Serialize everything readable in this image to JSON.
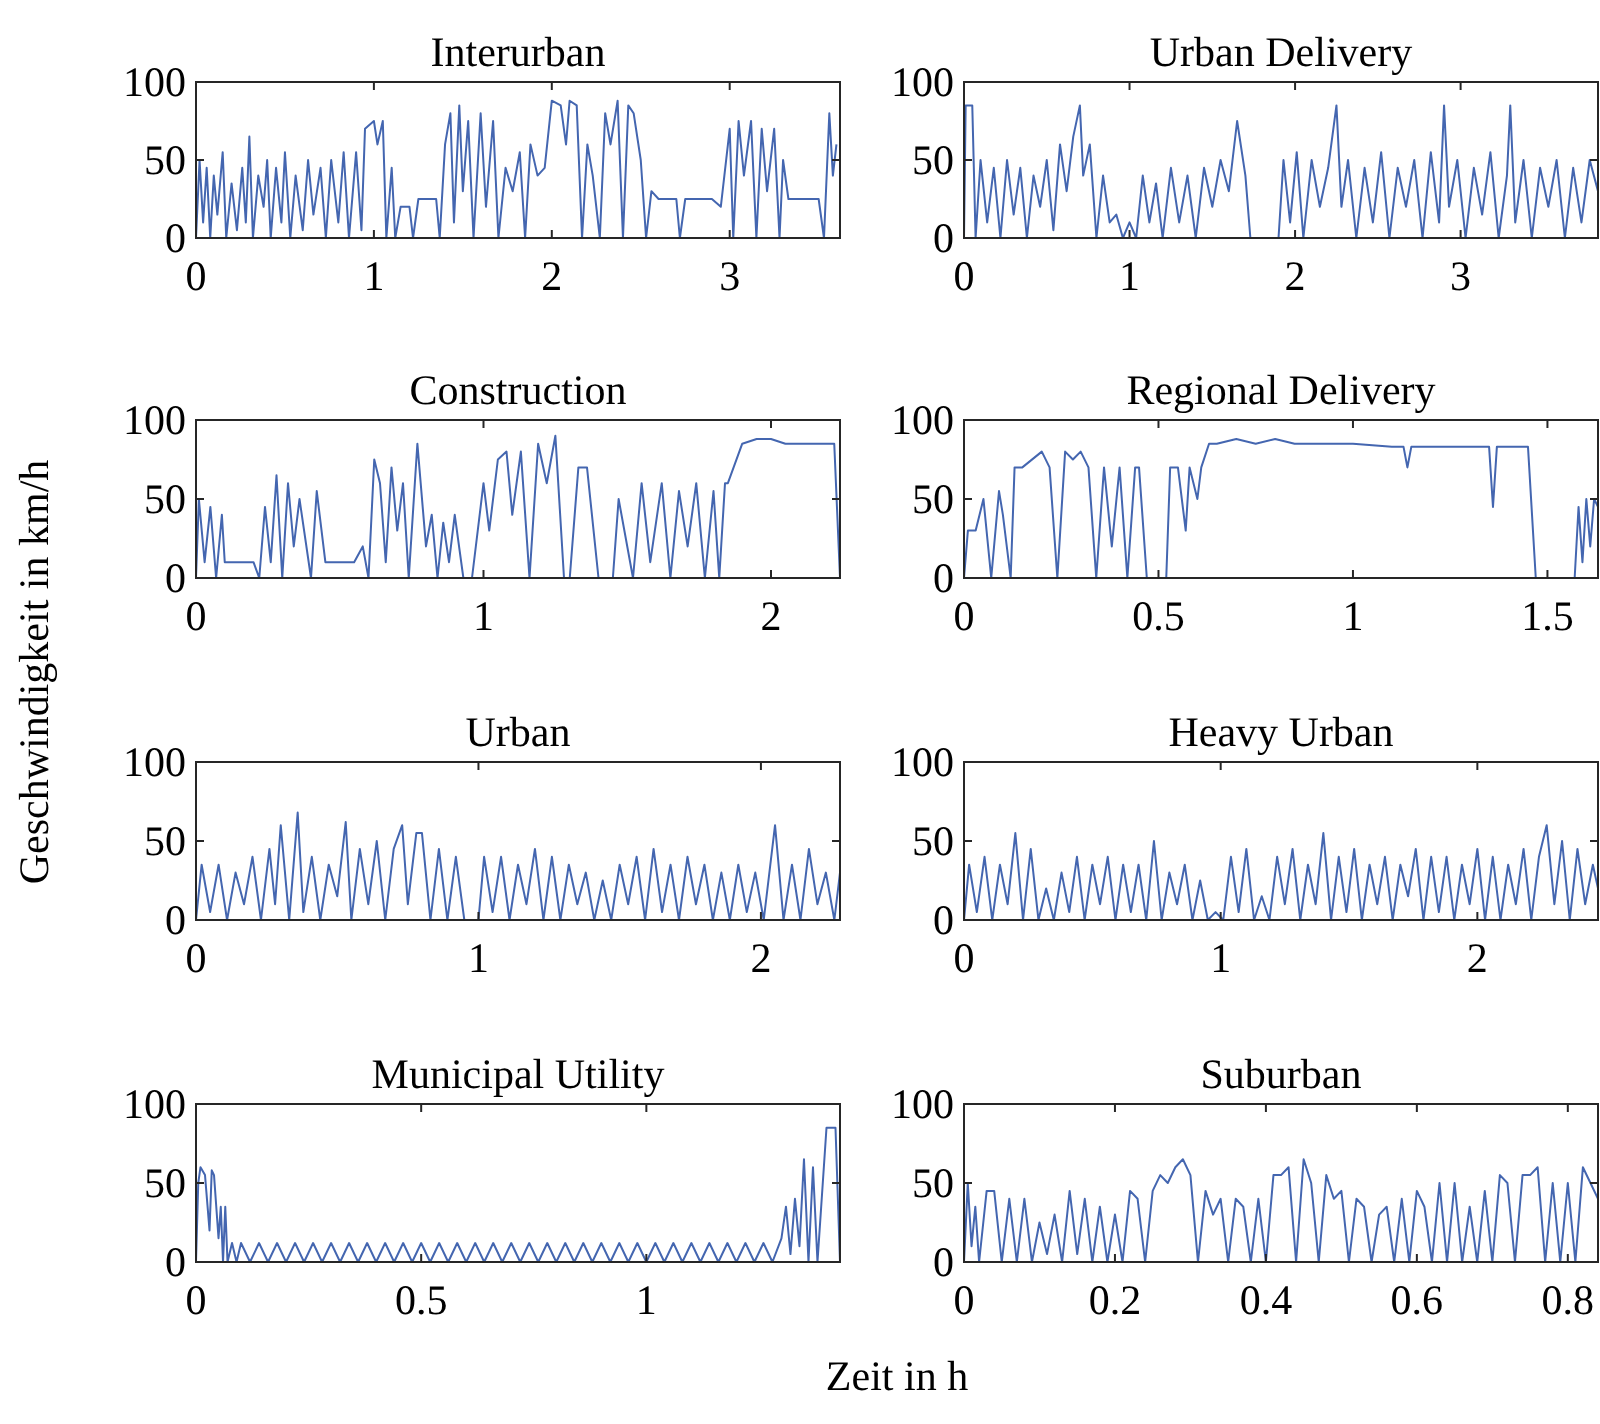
{
  "chart_data": [
    {
      "type": "line",
      "title": "Interurban",
      "ylabel": "Geschwindigkeit in km/h",
      "color": "#4466b0",
      "xlim": [
        0,
        3.62
      ],
      "xticks": [
        0,
        1,
        2,
        3
      ],
      "ylim": [
        0,
        100
      ],
      "yticks": [
        0,
        50,
        100
      ],
      "x": [
        0,
        0.02,
        0.04,
        0.06,
        0.08,
        0.1,
        0.12,
        0.15,
        0.17,
        0.2,
        0.23,
        0.26,
        0.28,
        0.3,
        0.32,
        0.35,
        0.38,
        0.4,
        0.42,
        0.45,
        0.48,
        0.5,
        0.53,
        0.56,
        0.6,
        0.63,
        0.66,
        0.7,
        0.73,
        0.76,
        0.8,
        0.83,
        0.86,
        0.9,
        0.93,
        0.95,
        1.0,
        1.02,
        1.05,
        1.07,
        1.1,
        1.12,
        1.15,
        1.2,
        1.22,
        1.25,
        1.35,
        1.37,
        1.4,
        1.43,
        1.45,
        1.48,
        1.5,
        1.53,
        1.56,
        1.6,
        1.63,
        1.67,
        1.7,
        1.74,
        1.78,
        1.82,
        1.85,
        1.88,
        1.92,
        1.96,
        2.0,
        2.05,
        2.08,
        2.1,
        2.14,
        2.17,
        2.2,
        2.23,
        2.27,
        2.3,
        2.33,
        2.37,
        2.4,
        2.43,
        2.46,
        2.5,
        2.53,
        2.56,
        2.6,
        2.7,
        2.72,
        2.75,
        2.9,
        2.95,
        3.0,
        3.02,
        3.05,
        3.08,
        3.12,
        3.15,
        3.18,
        3.21,
        3.25,
        3.28,
        3.3,
        3.33,
        3.5,
        3.53,
        3.56,
        3.58,
        3.6
      ],
      "values": [
        0,
        50,
        10,
        45,
        0,
        40,
        15,
        55,
        0,
        35,
        5,
        45,
        10,
        65,
        0,
        40,
        20,
        50,
        0,
        45,
        10,
        55,
        0,
        40,
        5,
        50,
        15,
        45,
        0,
        50,
        10,
        55,
        0,
        55,
        5,
        70,
        75,
        60,
        75,
        0,
        45,
        0,
        20,
        20,
        0,
        25,
        25,
        0,
        60,
        80,
        10,
        85,
        30,
        75,
        0,
        80,
        20,
        75,
        0,
        45,
        30,
        55,
        0,
        60,
        40,
        45,
        88,
        85,
        60,
        88,
        85,
        0,
        60,
        40,
        0,
        80,
        60,
        88,
        0,
        85,
        80,
        50,
        0,
        30,
        25,
        25,
        0,
        25,
        25,
        20,
        70,
        0,
        75,
        40,
        75,
        0,
        70,
        30,
        70,
        0,
        50,
        25,
        25,
        0,
        80,
        40,
        60
      ]
    },
    {
      "type": "line",
      "title": "Urban Delivery",
      "color": "#4466b0",
      "xlim": [
        0,
        3.83
      ],
      "xticks": [
        0,
        1,
        2,
        3
      ],
      "ylim": [
        0,
        100
      ],
      "yticks": [
        0,
        50,
        100
      ],
      "x": [
        0,
        0.01,
        0.05,
        0.07,
        0.1,
        0.14,
        0.18,
        0.22,
        0.26,
        0.3,
        0.34,
        0.38,
        0.42,
        0.46,
        0.5,
        0.54,
        0.58,
        0.62,
        0.66,
        0.7,
        0.72,
        0.76,
        0.8,
        0.84,
        0.88,
        0.92,
        0.96,
        1.0,
        1.04,
        1.08,
        1.12,
        1.16,
        1.2,
        1.25,
        1.3,
        1.35,
        1.4,
        1.45,
        1.5,
        1.55,
        1.6,
        1.65,
        1.7,
        1.73,
        1.9,
        1.93,
        1.97,
        2.01,
        2.05,
        2.1,
        2.15,
        2.2,
        2.25,
        2.28,
        2.32,
        2.37,
        2.42,
        2.47,
        2.52,
        2.57,
        2.62,
        2.67,
        2.72,
        2.77,
        2.82,
        2.87,
        2.9,
        2.93,
        2.98,
        3.03,
        3.08,
        3.13,
        3.18,
        3.23,
        3.28,
        3.3,
        3.33,
        3.38,
        3.43,
        3.48,
        3.53,
        3.58,
        3.63,
        3.68,
        3.73,
        3.78,
        3.83
      ],
      "values": [
        0,
        85,
        85,
        0,
        50,
        10,
        45,
        0,
        50,
        15,
        45,
        0,
        40,
        20,
        50,
        5,
        60,
        30,
        65,
        85,
        40,
        60,
        0,
        40,
        10,
        15,
        0,
        10,
        0,
        40,
        10,
        35,
        0,
        45,
        10,
        40,
        0,
        45,
        20,
        50,
        30,
        75,
        40,
        0,
        0,
        50,
        10,
        55,
        0,
        50,
        20,
        45,
        85,
        20,
        50,
        0,
        45,
        10,
        55,
        0,
        45,
        20,
        50,
        0,
        55,
        10,
        85,
        20,
        50,
        0,
        45,
        15,
        55,
        0,
        40,
        85,
        10,
        50,
        0,
        45,
        20,
        50,
        0,
        45,
        10,
        50,
        30
      ]
    },
    {
      "type": "line",
      "title": "Construction",
      "color": "#4466b0",
      "xlim": [
        0,
        2.24
      ],
      "xticks": [
        0,
        1,
        2
      ],
      "ylim": [
        0,
        100
      ],
      "yticks": [
        0,
        50,
        100
      ],
      "x": [
        0,
        0.01,
        0.03,
        0.05,
        0.07,
        0.09,
        0.1,
        0.2,
        0.22,
        0.24,
        0.26,
        0.28,
        0.3,
        0.32,
        0.34,
        0.36,
        0.4,
        0.42,
        0.45,
        0.55,
        0.58,
        0.6,
        0.62,
        0.64,
        0.66,
        0.68,
        0.7,
        0.72,
        0.74,
        0.77,
        0.8,
        0.82,
        0.84,
        0.86,
        0.88,
        0.9,
        0.93,
        0.96,
        1.0,
        1.02,
        1.05,
        1.08,
        1.1,
        1.13,
        1.16,
        1.19,
        1.22,
        1.25,
        1.28,
        1.3,
        1.33,
        1.36,
        1.4,
        1.45,
        1.47,
        1.52,
        1.55,
        1.58,
        1.62,
        1.65,
        1.68,
        1.71,
        1.74,
        1.77,
        1.8,
        1.82,
        1.84,
        1.85,
        1.9,
        1.95,
        2.0,
        2.05,
        2.1,
        2.2,
        2.22,
        2.24
      ],
      "values": [
        0,
        50,
        10,
        45,
        0,
        40,
        10,
        10,
        0,
        45,
        10,
        65,
        0,
        60,
        20,
        50,
        0,
        55,
        10,
        10,
        20,
        0,
        75,
        60,
        10,
        70,
        30,
        60,
        0,
        85,
        20,
        40,
        0,
        35,
        10,
        40,
        0,
        0,
        60,
        30,
        75,
        80,
        40,
        80,
        0,
        85,
        60,
        90,
        0,
        0,
        70,
        70,
        0,
        0,
        50,
        0,
        60,
        10,
        60,
        0,
        55,
        20,
        60,
        0,
        55,
        0,
        60,
        60,
        85,
        88,
        88,
        85,
        85,
        85,
        85,
        0
      ]
    },
    {
      "type": "line",
      "title": "Regional Delivery",
      "color": "#4466b0",
      "xlim": [
        0,
        1.63
      ],
      "xticks": [
        0,
        0.5,
        1,
        1.5
      ],
      "ylim": [
        0,
        100
      ],
      "yticks": [
        0,
        50,
        100
      ],
      "x": [
        0,
        0.01,
        0.03,
        0.05,
        0.07,
        0.09,
        0.1,
        0.12,
        0.13,
        0.15,
        0.2,
        0.22,
        0.24,
        0.26,
        0.28,
        0.3,
        0.32,
        0.34,
        0.36,
        0.38,
        0.4,
        0.42,
        0.44,
        0.45,
        0.47,
        0.52,
        0.53,
        0.55,
        0.57,
        0.58,
        0.6,
        0.61,
        0.63,
        0.65,
        0.7,
        0.75,
        0.8,
        0.85,
        0.9,
        1.0,
        1.1,
        1.13,
        1.14,
        1.15,
        1.2,
        1.3,
        1.35,
        1.36,
        1.37,
        1.4,
        1.45,
        1.47,
        1.57,
        1.58,
        1.59,
        1.6,
        1.61,
        1.62,
        1.63
      ],
      "values": [
        0,
        30,
        30,
        50,
        0,
        55,
        40,
        0,
        70,
        70,
        80,
        70,
        0,
        80,
        75,
        80,
        70,
        0,
        70,
        20,
        70,
        0,
        70,
        70,
        0,
        0,
        70,
        70,
        30,
        70,
        50,
        70,
        85,
        85,
        88,
        85,
        88,
        85,
        85,
        85,
        83,
        83,
        70,
        83,
        83,
        83,
        83,
        45,
        83,
        83,
        83,
        0,
        0,
        45,
        10,
        50,
        20,
        50,
        45
      ]
    },
    {
      "type": "line",
      "title": "Urban",
      "color": "#4466b0",
      "xlim": [
        0,
        2.28
      ],
      "xticks": [
        0,
        1,
        2
      ],
      "ylim": [
        0,
        100
      ],
      "yticks": [
        0,
        50,
        100
      ],
      "x": [
        0,
        0.02,
        0.05,
        0.08,
        0.11,
        0.14,
        0.17,
        0.2,
        0.23,
        0.26,
        0.28,
        0.3,
        0.33,
        0.36,
        0.38,
        0.41,
        0.44,
        0.47,
        0.5,
        0.53,
        0.55,
        0.58,
        0.61,
        0.64,
        0.67,
        0.7,
        0.73,
        0.75,
        0.78,
        0.8,
        0.83,
        0.86,
        0.89,
        0.92,
        0.95,
        1.0,
        1.02,
        1.05,
        1.08,
        1.11,
        1.14,
        1.17,
        1.2,
        1.23,
        1.26,
        1.29,
        1.32,
        1.35,
        1.38,
        1.41,
        1.44,
        1.47,
        1.5,
        1.53,
        1.56,
        1.59,
        1.62,
        1.65,
        1.68,
        1.71,
        1.74,
        1.77,
        1.8,
        1.83,
        1.86,
        1.89,
        1.92,
        1.95,
        1.98,
        2.01,
        2.05,
        2.08,
        2.11,
        2.14,
        2.17,
        2.2,
        2.23,
        2.26,
        2.28
      ],
      "values": [
        0,
        35,
        5,
        35,
        0,
        30,
        10,
        40,
        0,
        45,
        10,
        60,
        0,
        68,
        5,
        40,
        0,
        35,
        15,
        62,
        0,
        45,
        10,
        50,
        0,
        45,
        60,
        10,
        55,
        55,
        0,
        45,
        0,
        40,
        0,
        0,
        40,
        5,
        40,
        0,
        35,
        10,
        45,
        0,
        40,
        0,
        35,
        10,
        30,
        0,
        25,
        0,
        35,
        10,
        40,
        0,
        45,
        5,
        35,
        0,
        40,
        10,
        35,
        0,
        30,
        0,
        35,
        5,
        30,
        0,
        60,
        0,
        35,
        0,
        45,
        10,
        30,
        0,
        30
      ]
    },
    {
      "type": "line",
      "title": "Heavy Urban",
      "color": "#4466b0",
      "xlim": [
        0,
        2.47
      ],
      "xticks": [
        0,
        1,
        2
      ],
      "ylim": [
        0,
        100
      ],
      "yticks": [
        0,
        50,
        100
      ],
      "x": [
        0,
        0.02,
        0.05,
        0.08,
        0.11,
        0.14,
        0.17,
        0.2,
        0.23,
        0.26,
        0.29,
        0.32,
        0.35,
        0.38,
        0.41,
        0.44,
        0.47,
        0.5,
        0.53,
        0.56,
        0.59,
        0.62,
        0.65,
        0.68,
        0.71,
        0.74,
        0.77,
        0.8,
        0.83,
        0.86,
        0.89,
        0.92,
        0.95,
        0.98,
        1.01,
        1.04,
        1.07,
        1.1,
        1.13,
        1.16,
        1.19,
        1.22,
        1.25,
        1.28,
        1.31,
        1.34,
        1.37,
        1.4,
        1.43,
        1.46,
        1.49,
        1.52,
        1.55,
        1.58,
        1.61,
        1.64,
        1.67,
        1.7,
        1.73,
        1.76,
        1.79,
        1.82,
        1.85,
        1.88,
        1.91,
        1.94,
        1.97,
        2.0,
        2.03,
        2.06,
        2.09,
        2.12,
        2.15,
        2.18,
        2.21,
        2.24,
        2.27,
        2.3,
        2.33,
        2.36,
        2.39,
        2.42,
        2.45,
        2.47
      ],
      "values": [
        0,
        35,
        5,
        40,
        0,
        35,
        10,
        55,
        0,
        45,
        0,
        20,
        0,
        30,
        5,
        40,
        0,
        35,
        10,
        40,
        0,
        35,
        5,
        35,
        0,
        50,
        0,
        30,
        10,
        35,
        0,
        25,
        0,
        5,
        0,
        40,
        5,
        45,
        0,
        15,
        0,
        40,
        10,
        45,
        0,
        35,
        10,
        55,
        0,
        40,
        5,
        45,
        0,
        35,
        10,
        40,
        0,
        35,
        15,
        45,
        0,
        40,
        5,
        40,
        0,
        35,
        10,
        45,
        0,
        40,
        0,
        35,
        10,
        45,
        0,
        40,
        60,
        10,
        50,
        0,
        45,
        10,
        35,
        20
      ]
    },
    {
      "type": "line",
      "title": "Municipal Utility",
      "xlabel": "Zeit in h",
      "color": "#4466b0",
      "xlim": [
        0,
        1.43
      ],
      "xticks": [
        0,
        0.5,
        1
      ],
      "ylim": [
        0,
        100
      ],
      "yticks": [
        0,
        50,
        100
      ],
      "x": [
        0,
        0.005,
        0.01,
        0.02,
        0.03,
        0.035,
        0.04,
        0.05,
        0.055,
        0.06,
        0.065,
        0.07,
        0.08,
        0.09,
        0.1,
        0.12,
        0.14,
        0.16,
        0.18,
        0.2,
        0.22,
        0.24,
        0.26,
        0.28,
        0.3,
        0.32,
        0.34,
        0.36,
        0.38,
        0.4,
        0.42,
        0.44,
        0.46,
        0.48,
        0.5,
        0.52,
        0.54,
        0.56,
        0.58,
        0.6,
        0.62,
        0.64,
        0.66,
        0.68,
        0.7,
        0.72,
        0.74,
        0.76,
        0.78,
        0.8,
        0.82,
        0.84,
        0.86,
        0.88,
        0.9,
        0.92,
        0.94,
        0.96,
        0.98,
        1.0,
        1.02,
        1.04,
        1.06,
        1.08,
        1.1,
        1.12,
        1.14,
        1.16,
        1.18,
        1.2,
        1.22,
        1.24,
        1.26,
        1.28,
        1.3,
        1.31,
        1.32,
        1.33,
        1.34,
        1.35,
        1.36,
        1.37,
        1.38,
        1.4,
        1.42,
        1.43
      ],
      "values": [
        0,
        50,
        60,
        55,
        20,
        58,
        55,
        15,
        35,
        0,
        35,
        0,
        12,
        0,
        12,
        0,
        12,
        0,
        12,
        0,
        12,
        0,
        12,
        0,
        12,
        0,
        12,
        0,
        12,
        0,
        12,
        0,
        12,
        0,
        12,
        0,
        12,
        0,
        12,
        0,
        12,
        0,
        12,
        0,
        12,
        0,
        12,
        0,
        12,
        0,
        12,
        0,
        12,
        0,
        12,
        0,
        12,
        0,
        12,
        0,
        12,
        0,
        12,
        0,
        12,
        0,
        12,
        0,
        12,
        0,
        12,
        0,
        12,
        0,
        15,
        35,
        5,
        40,
        10,
        65,
        0,
        60,
        0,
        85,
        85,
        0
      ]
    },
    {
      "type": "line",
      "title": "Suburban",
      "color": "#4466b0",
      "xlim": [
        0,
        0.84
      ],
      "xticks": [
        0,
        0.2,
        0.4,
        0.6,
        0.8
      ],
      "ylim": [
        0,
        100
      ],
      "yticks": [
        0,
        50,
        100
      ],
      "x": [
        0,
        0.005,
        0.01,
        0.015,
        0.02,
        0.03,
        0.04,
        0.05,
        0.06,
        0.07,
        0.08,
        0.09,
        0.1,
        0.11,
        0.12,
        0.13,
        0.14,
        0.15,
        0.16,
        0.17,
        0.18,
        0.19,
        0.2,
        0.21,
        0.22,
        0.23,
        0.24,
        0.25,
        0.26,
        0.27,
        0.28,
        0.29,
        0.3,
        0.31,
        0.32,
        0.33,
        0.34,
        0.35,
        0.36,
        0.37,
        0.38,
        0.39,
        0.4,
        0.41,
        0.42,
        0.43,
        0.44,
        0.45,
        0.46,
        0.47,
        0.48,
        0.49,
        0.5,
        0.51,
        0.52,
        0.53,
        0.54,
        0.55,
        0.56,
        0.57,
        0.58,
        0.59,
        0.6,
        0.61,
        0.62,
        0.63,
        0.64,
        0.65,
        0.66,
        0.67,
        0.68,
        0.69,
        0.7,
        0.71,
        0.72,
        0.73,
        0.74,
        0.75,
        0.76,
        0.77,
        0.78,
        0.79,
        0.8,
        0.81,
        0.82,
        0.83,
        0.84
      ],
      "values": [
        0,
        50,
        10,
        35,
        0,
        45,
        45,
        0,
        40,
        0,
        40,
        0,
        25,
        5,
        30,
        0,
        45,
        5,
        40,
        0,
        35,
        0,
        30,
        0,
        45,
        40,
        0,
        45,
        55,
        50,
        60,
        65,
        55,
        0,
        45,
        30,
        40,
        0,
        40,
        35,
        0,
        40,
        0,
        55,
        55,
        60,
        0,
        65,
        50,
        0,
        55,
        40,
        45,
        0,
        40,
        35,
        0,
        30,
        35,
        0,
        40,
        0,
        45,
        35,
        0,
        50,
        0,
        50,
        0,
        35,
        0,
        45,
        0,
        55,
        50,
        0,
        55,
        55,
        60,
        0,
        50,
        0,
        50,
        0,
        60,
        50,
        40
      ]
    }
  ]
}
